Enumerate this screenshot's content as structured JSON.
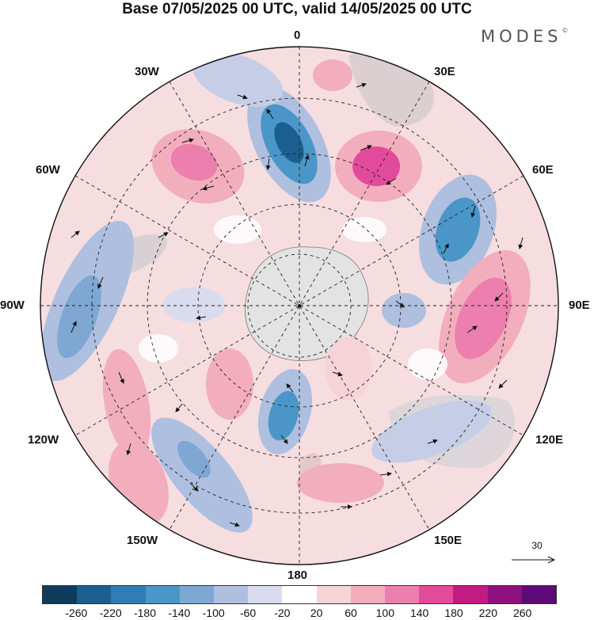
{
  "title": "Base 07/05/2025 00 UTC, valid 14/05/2025 00 UTC",
  "brand": "MODES",
  "brand_mark": "©",
  "longitude_labels": {
    "lon_0": "0",
    "lon_30e": "30E",
    "lon_60e": "60E",
    "lon_90e": "90E",
    "lon_120e": "120E",
    "lon_150e": "150E",
    "lon_180": "180",
    "lon_150w": "150W",
    "lon_120w": "120W",
    "lon_90w": "90W",
    "lon_60w": "60W",
    "lon_30w": "30W"
  },
  "reference_vector": {
    "value": "30"
  },
  "colorbar": {
    "colors": [
      "#0f3b5c",
      "#1a5f8f",
      "#2e7db5",
      "#4b96c8",
      "#7ea8d3",
      "#aebfe0",
      "#d9dcef",
      "#ffffff",
      "#f6d3d6",
      "#f2aebd",
      "#ec7fae",
      "#e24a9c",
      "#c21b84",
      "#8f0f7e",
      "#5b0a78"
    ],
    "tick_labels": [
      "-260",
      "-220",
      "-180",
      "-140",
      "-100",
      "-60",
      "-20",
      "20",
      "60",
      "100",
      "140",
      "180",
      "220",
      "260"
    ]
  },
  "colors": {
    "land": "#e3e3e3",
    "grid": "#222222"
  }
}
